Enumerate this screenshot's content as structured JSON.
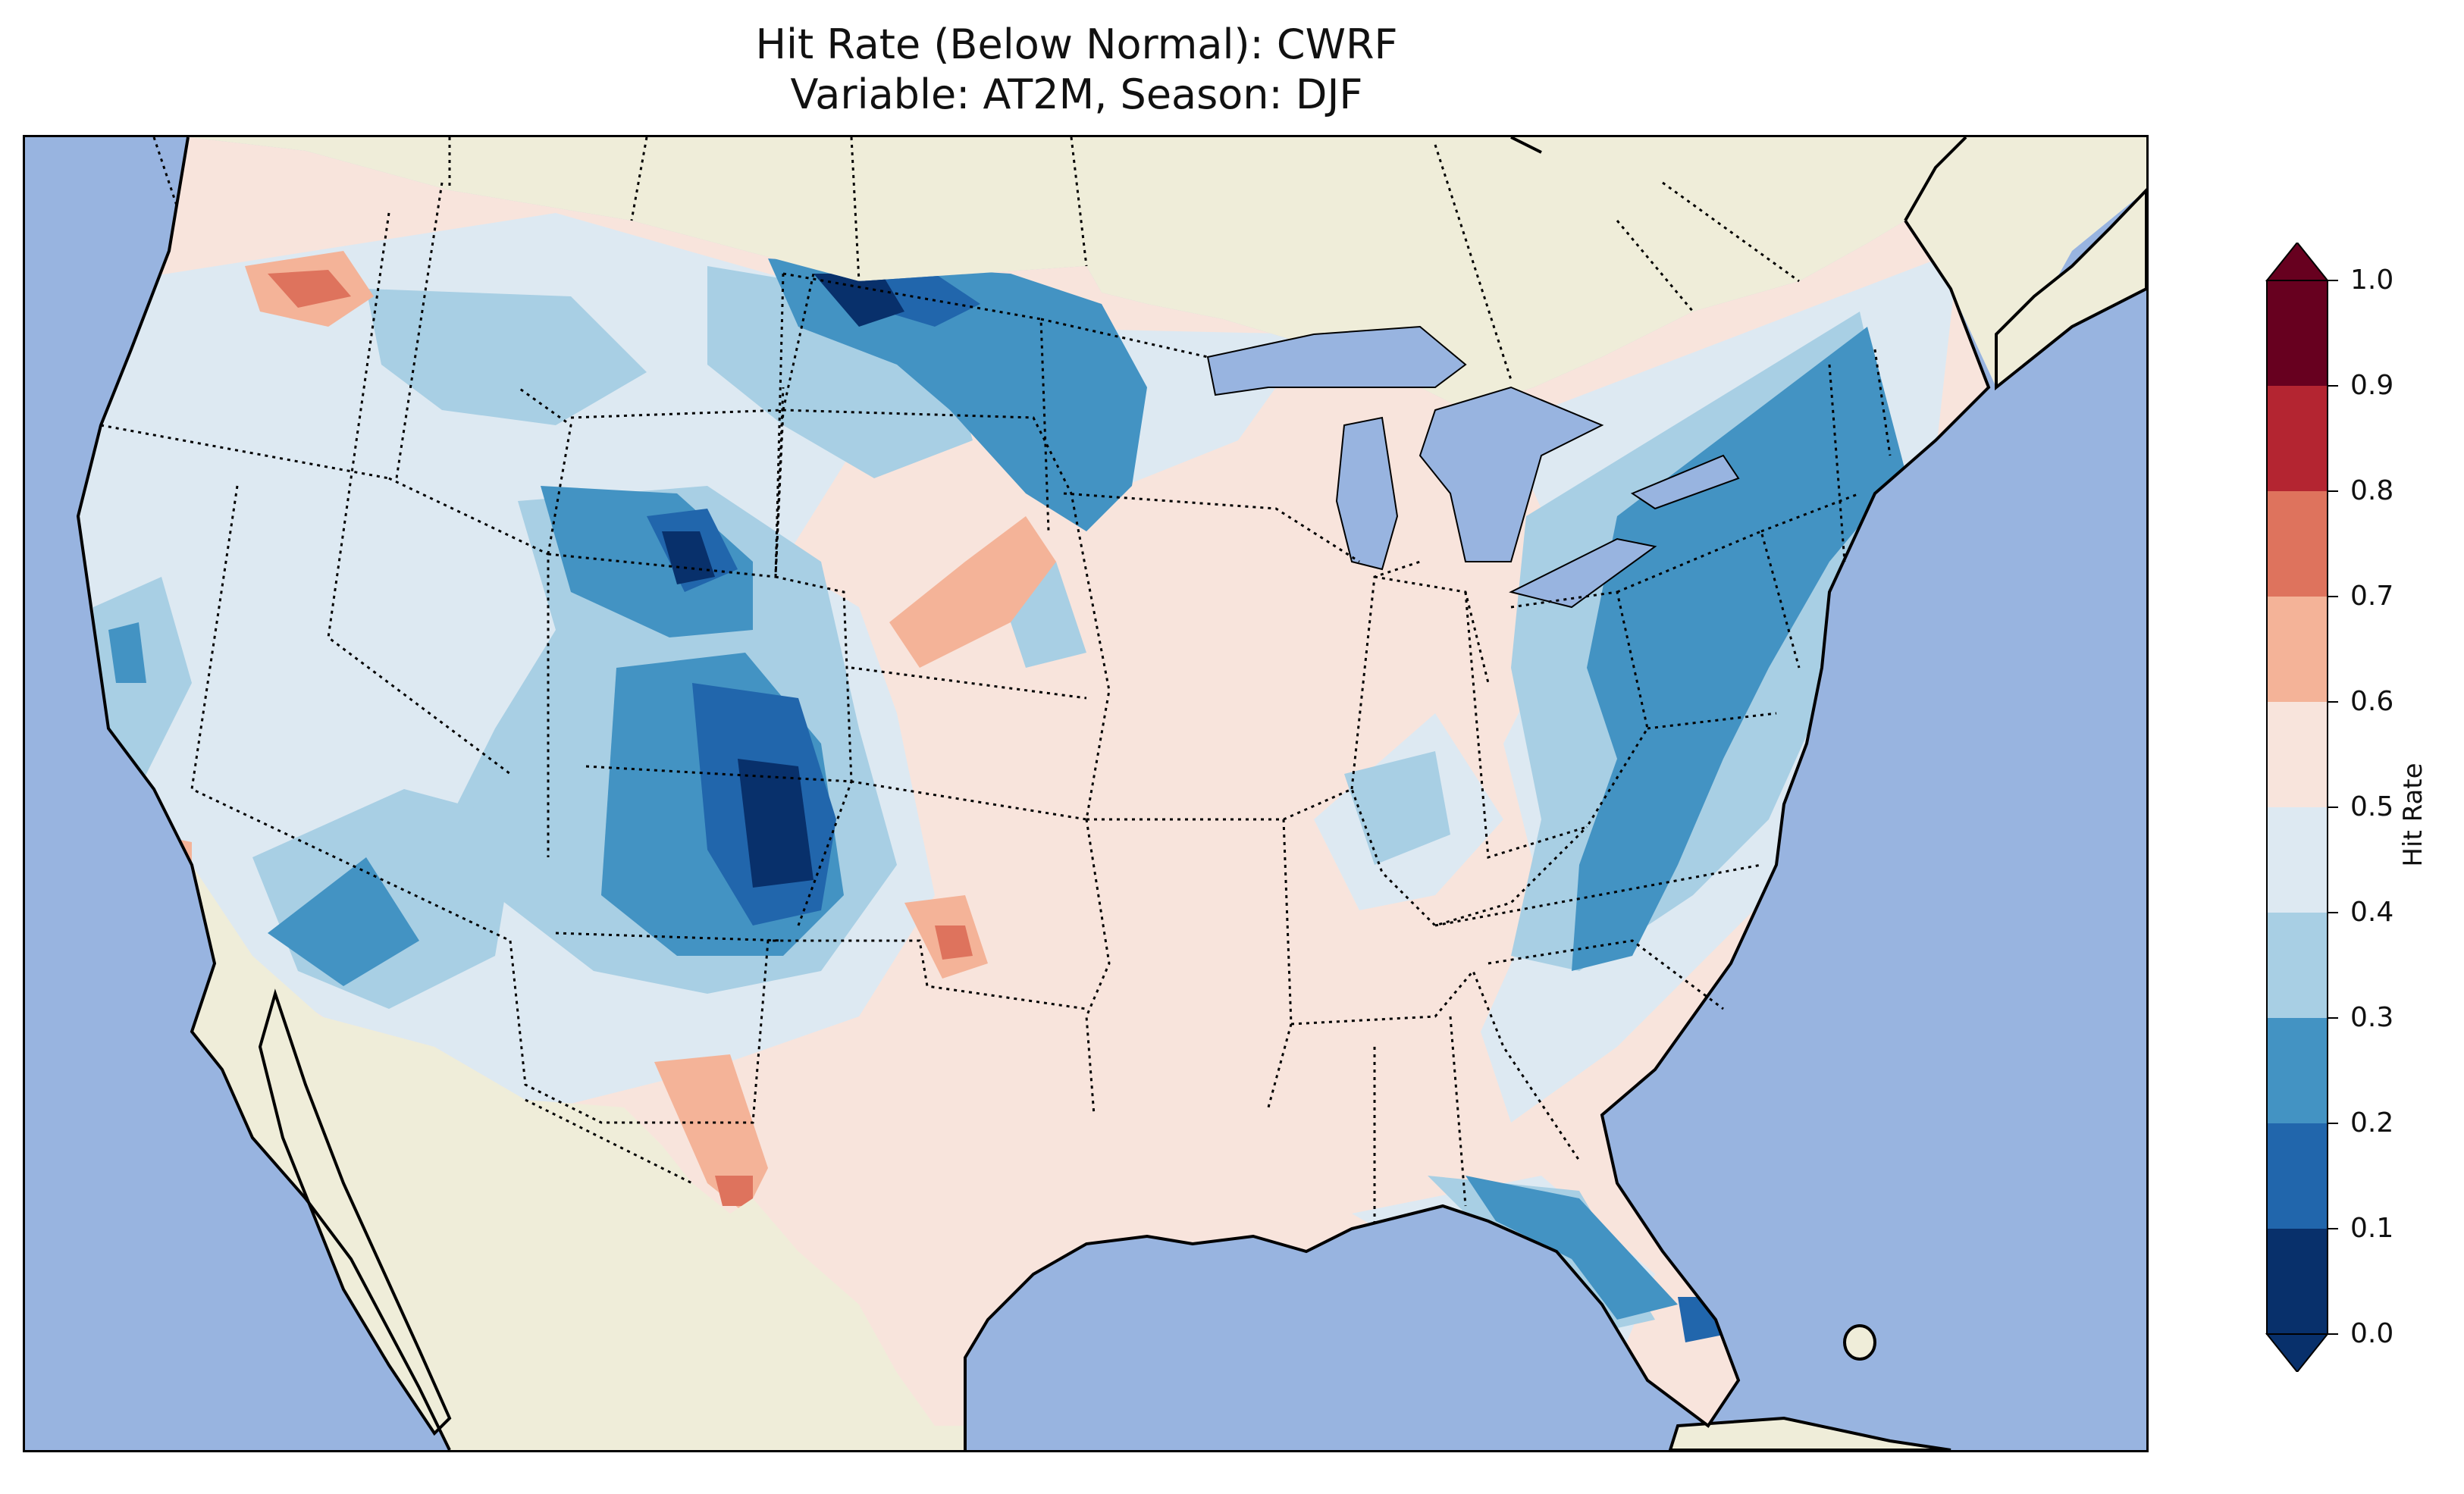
{
  "title": {
    "line1": "Hit Rate (Below Normal): CWRF",
    "line2": "Variable: AT2M, Season: DJF"
  },
  "colorbar": {
    "label": "Hit Rate",
    "ticks": [
      "1.0",
      "0.9",
      "0.8",
      "0.7",
      "0.6",
      "0.5",
      "0.4",
      "0.3",
      "0.2",
      "0.1",
      "0.0"
    ],
    "bins": [
      {
        "range": [
          0.0,
          0.1
        ],
        "color": "#08306b"
      },
      {
        "range": [
          0.1,
          0.2
        ],
        "color": "#2166ac"
      },
      {
        "range": [
          0.2,
          0.3
        ],
        "color": "#4393c3"
      },
      {
        "range": [
          0.3,
          0.4
        ],
        "color": "#a8cfe4"
      },
      {
        "range": [
          0.4,
          0.5
        ],
        "color": "#dde9f2"
      },
      {
        "range": [
          0.5,
          0.6
        ],
        "color": "#f8e4dc"
      },
      {
        "range": [
          0.6,
          0.7
        ],
        "color": "#f4b398"
      },
      {
        "range": [
          0.7,
          0.8
        ],
        "color": "#de735d"
      },
      {
        "range": [
          0.8,
          0.9
        ],
        "color": "#b42531"
      },
      {
        "range": [
          0.9,
          1.0
        ],
        "color": "#67001f"
      }
    ],
    "extend": "both"
  },
  "map": {
    "ocean_color": "#98b4e0",
    "land_color": "#efedd9",
    "region": "Contiguous United States",
    "season": "DJF",
    "variable": "AT2M",
    "model": "CWRF"
  }
}
